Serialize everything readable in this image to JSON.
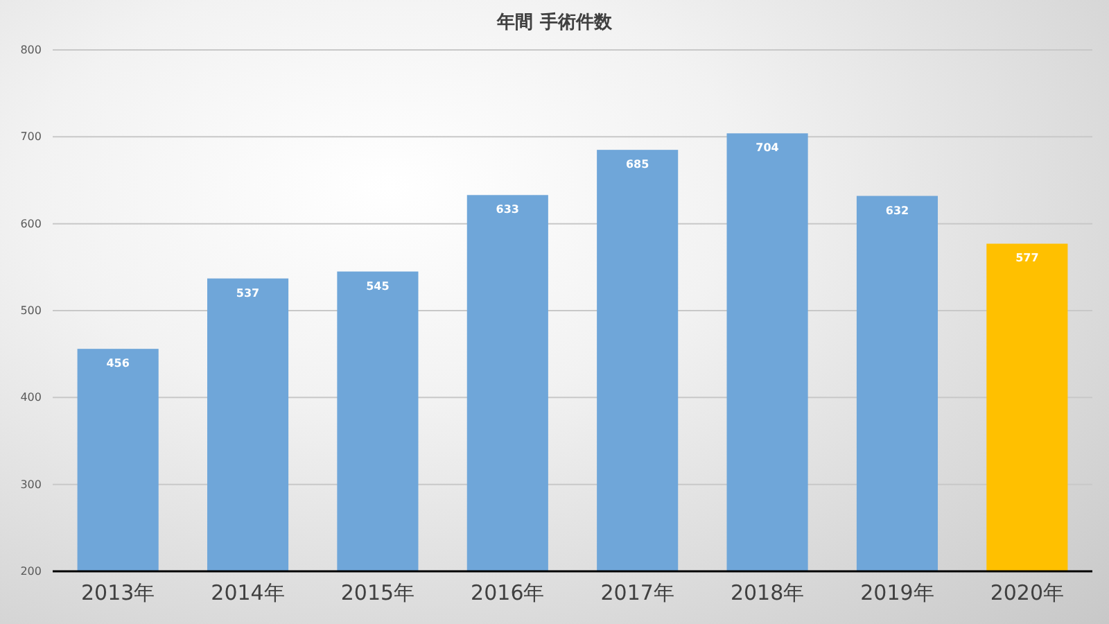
{
  "chart_data": {
    "type": "bar",
    "title": "年間 手術件数",
    "categories": [
      "2013年",
      "2014年",
      "2015年",
      "2016年",
      "2017年",
      "2018年",
      "2019年",
      "2020年"
    ],
    "values": [
      456,
      537,
      545,
      633,
      685,
      704,
      632,
      577
    ],
    "colors": [
      "#6fa6d9",
      "#6fa6d9",
      "#6fa6d9",
      "#6fa6d9",
      "#6fa6d9",
      "#6fa6d9",
      "#6fa6d9",
      "#ffc000"
    ],
    "ylim": [
      200,
      800
    ],
    "yticks": [
      200,
      300,
      400,
      500,
      600,
      700,
      800
    ],
    "grid": "y",
    "data_labels": true
  }
}
